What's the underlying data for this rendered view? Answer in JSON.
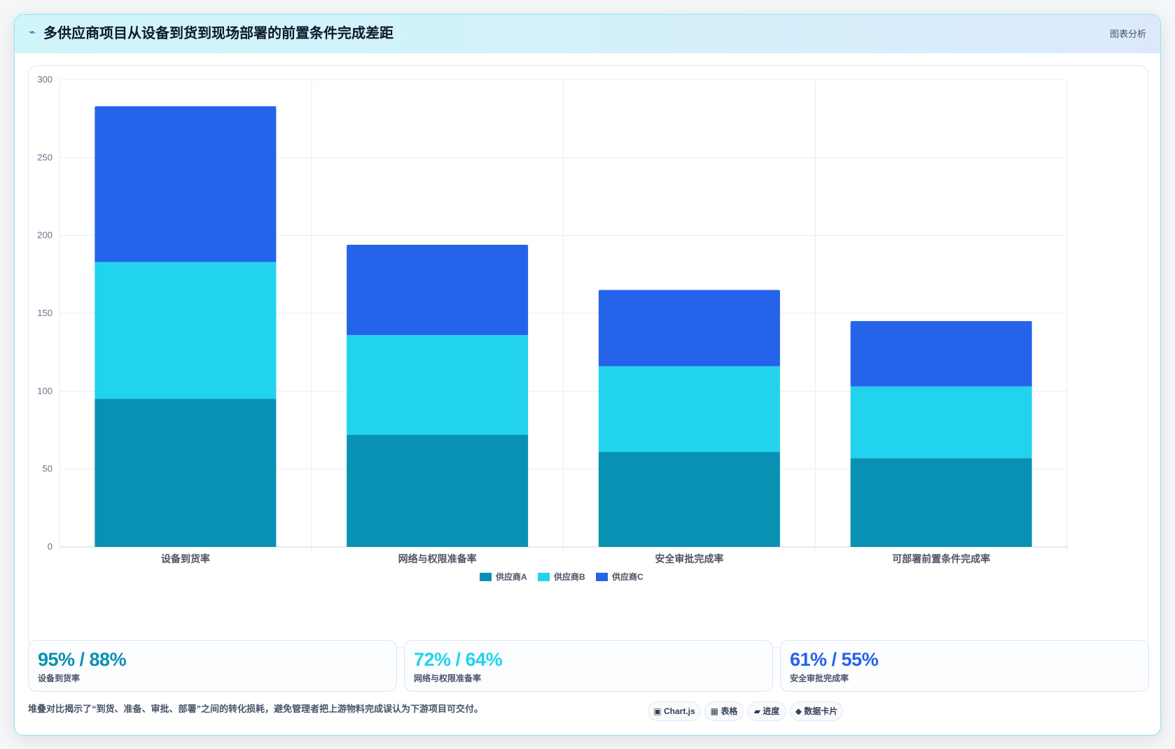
{
  "header": {
    "icon": "bolt-icon",
    "icon_glyph": "⌁",
    "title": "多供应商项目从设备到货到现场部署的前置条件完成差距",
    "tag": "图表分析"
  },
  "colors": {
    "supplier_a": "#0891b2",
    "supplier_b": "#22d3ee",
    "supplier_c": "#2563eb"
  },
  "chart_data": {
    "type": "bar",
    "stacked": true,
    "categories": [
      "设备到货率",
      "网络与权限准备率",
      "安全审批完成率",
      "可部署前置条件完成率"
    ],
    "series": [
      {
        "name": "供应商A",
        "values": [
          95,
          72,
          61,
          57
        ],
        "color": "#0891b2"
      },
      {
        "name": "供应商B",
        "values": [
          88,
          64,
          55,
          46
        ],
        "color": "#22d3ee"
      },
      {
        "name": "供应商C",
        "values": [
          100,
          58,
          49,
          42
        ],
        "color": "#2563eb"
      }
    ],
    "ylim": [
      0,
      300
    ],
    "yticks": [
      "0",
      "50",
      "100",
      "150",
      "200",
      "250",
      "300"
    ],
    "grid": true,
    "legend_position": "bottom"
  },
  "kpis": [
    {
      "value": "95% / 88%",
      "label": "设备到货率",
      "color": "#0891b2"
    },
    {
      "value": "72% / 64%",
      "label": "网络与权限准备率",
      "color": "#22d3ee"
    },
    {
      "value": "61% / 55%",
      "label": "安全审批完成率",
      "color": "#2563eb"
    }
  ],
  "note": "堆叠对比揭示了“到货、准备、审批、部署”之间的转化损耗，避免管理者把上游物料完成误认为下游项目可交付。",
  "chips": [
    {
      "label": "▣ Chart.js"
    },
    {
      "label": "▦ 表格"
    },
    {
      "label": "▰ 进度"
    },
    {
      "label": "◆ 数据卡片"
    }
  ]
}
